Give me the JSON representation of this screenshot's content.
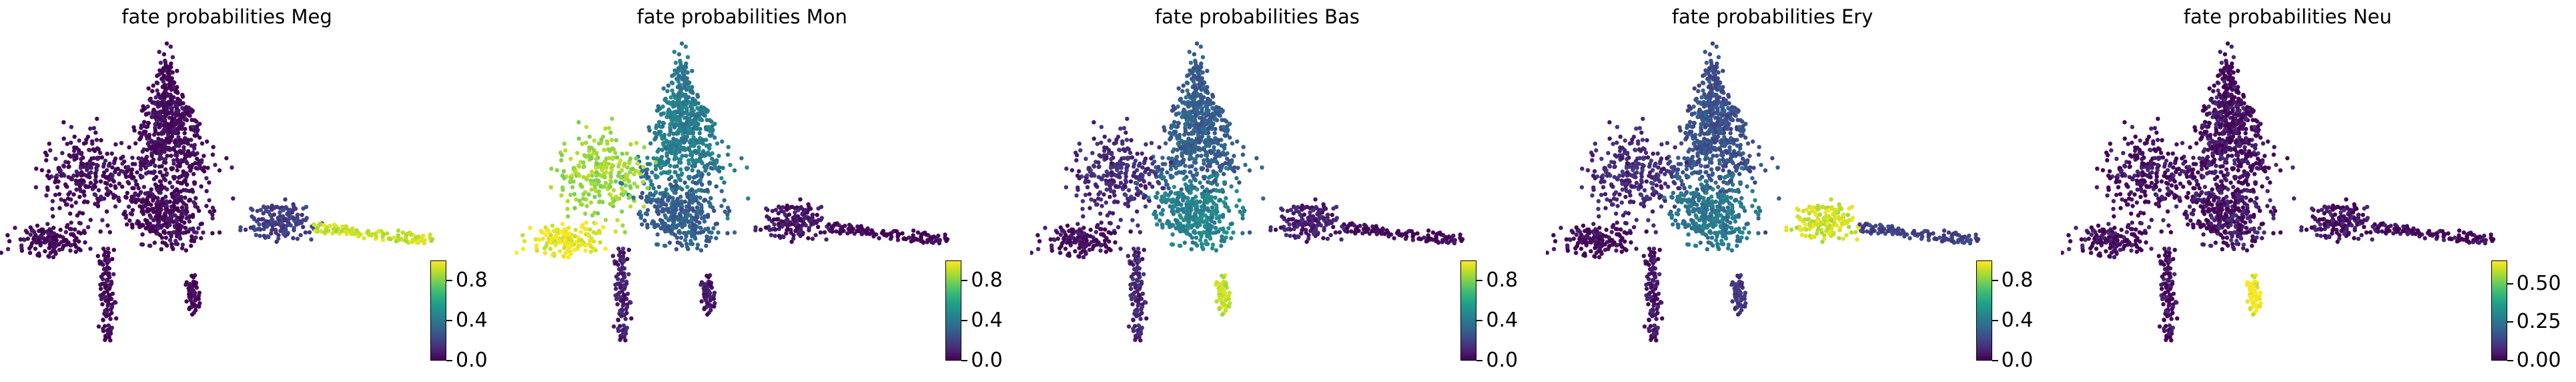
{
  "chart_data": [
    {
      "type": "scatter",
      "title": "fate probabilities Meg",
      "colormap": "viridis",
      "colorbar": {
        "range": [
          0,
          1
        ],
        "ticks": [
          0.0,
          0.4,
          0.8
        ],
        "tick_labels": [
          "0.0",
          "0.4",
          "0.8"
        ]
      },
      "regions": {
        "top": 0.02,
        "left": 0.03,
        "center": 0.02,
        "bottom_left": 0.01,
        "bottom_stem": 0.01,
        "right_mid": 0.18,
        "right_tip": 0.92,
        "lower_stub": 0.0
      },
      "axes_visible": false
    },
    {
      "type": "scatter",
      "title": "fate probabilities Mon",
      "colormap": "viridis",
      "colorbar": {
        "range": [
          0,
          1
        ],
        "ticks": [
          0.0,
          0.4,
          0.8
        ],
        "tick_labels": [
          "0.0",
          "0.4",
          "0.8"
        ]
      },
      "regions": {
        "top": 0.42,
        "left": 0.85,
        "center": 0.3,
        "bottom_left": 0.97,
        "bottom_stem": 0.08,
        "right_mid": 0.05,
        "right_tip": 0.01,
        "lower_stub": 0.05
      },
      "axes_visible": false
    },
    {
      "type": "scatter",
      "title": "fate probabilities Bas",
      "colormap": "viridis",
      "colorbar": {
        "range": [
          0,
          1
        ],
        "ticks": [
          0.0,
          0.4,
          0.8
        ],
        "tick_labels": [
          "0.0",
          "0.4",
          "0.8"
        ]
      },
      "regions": {
        "top": 0.3,
        "left": 0.12,
        "center": 0.45,
        "bottom_left": 0.03,
        "bottom_stem": 0.1,
        "right_mid": 0.08,
        "right_tip": 0.02,
        "lower_stub": 0.9
      },
      "axes_visible": false
    },
    {
      "type": "scatter",
      "title": "fate probabilities Ery",
      "colormap": "viridis",
      "colorbar": {
        "range": [
          0,
          1
        ],
        "ticks": [
          0.0,
          0.4,
          0.8
        ],
        "tick_labels": [
          "0.0",
          "0.4",
          "0.8"
        ]
      },
      "regions": {
        "top": 0.25,
        "left": 0.12,
        "center": 0.4,
        "bottom_left": 0.02,
        "bottom_stem": 0.05,
        "right_mid": 0.92,
        "right_tip": 0.2,
        "lower_stub": 0.15
      },
      "axes_visible": false
    },
    {
      "type": "scatter",
      "title": "fate probabilities Neu",
      "colormap": "viridis",
      "colorbar": {
        "range": [
          0,
          0.65
        ],
        "ticks": [
          0.0,
          0.25,
          0.5
        ],
        "tick_labels": [
          "0.00",
          "0.25",
          "0.50"
        ]
      },
      "regions": {
        "top": 0.02,
        "left": 0.02,
        "center": 0.03,
        "bottom_left": 0.01,
        "bottom_stem": 0.01,
        "right_mid": 0.02,
        "right_tip": 0.01,
        "lower_stub": 0.64
      },
      "axes_visible": false
    }
  ]
}
